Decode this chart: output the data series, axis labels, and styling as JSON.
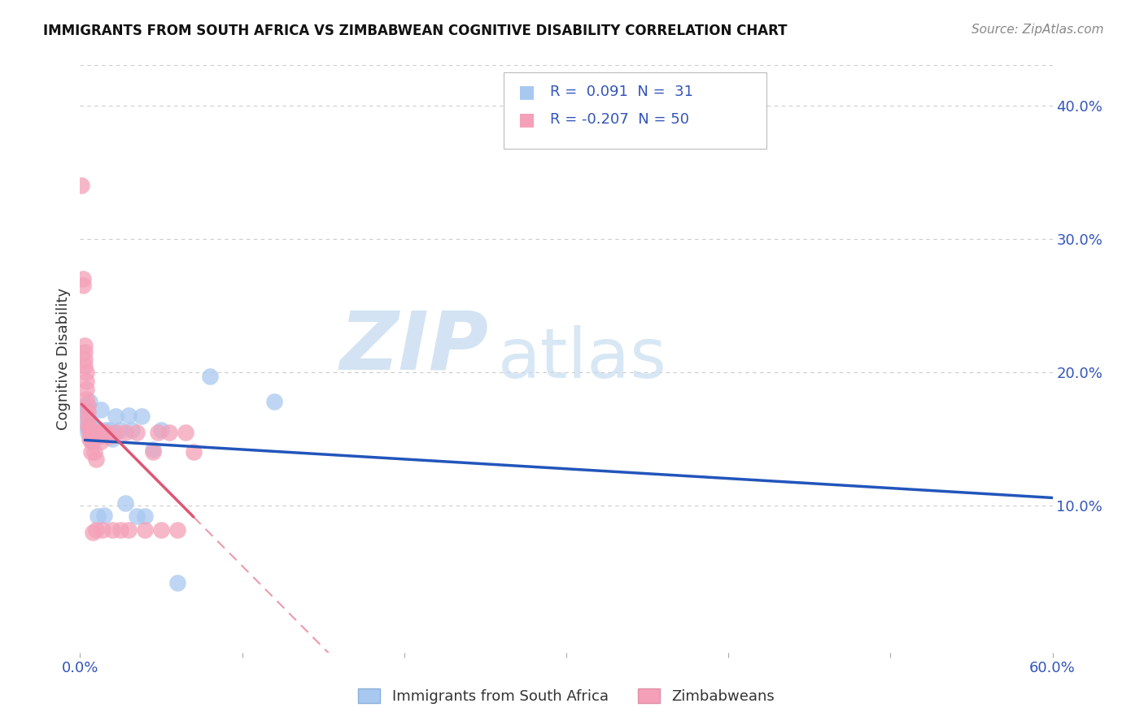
{
  "title": "IMMIGRANTS FROM SOUTH AFRICA VS ZIMBABWEAN COGNITIVE DISABILITY CORRELATION CHART",
  "source": "Source: ZipAtlas.com",
  "ylabel": "Cognitive Disability",
  "xlim": [
    0.0,
    0.6
  ],
  "ylim": [
    -0.01,
    0.43
  ],
  "xtick_positions": [
    0.0,
    0.1,
    0.2,
    0.3,
    0.4,
    0.5,
    0.6
  ],
  "xticklabels": [
    "0.0%",
    "",
    "",
    "",
    "",
    "",
    "60.0%"
  ],
  "yticks_right": [
    0.1,
    0.2,
    0.3,
    0.4
  ],
  "ytick_right_labels": [
    "10.0%",
    "20.0%",
    "30.0%",
    "40.0%"
  ],
  "grid_color": "#cccccc",
  "background_color": "#ffffff",
  "series1_color": "#a8c8f0",
  "series2_color": "#f4a0b8",
  "series1_line_color": "#2255bb",
  "series2_line_color": "#e05575",
  "series1_label": "Immigrants from South Africa",
  "series2_label": "Zimbabweans",
  "series1_R": 0.091,
  "series1_N": 31,
  "series2_R": -0.207,
  "series2_N": 50,
  "watermark_zip": "ZIP",
  "watermark_atlas": "atlas",
  "series1_x": [
    0.003,
    0.004,
    0.004,
    0.005,
    0.005,
    0.006,
    0.007,
    0.007,
    0.008,
    0.009,
    0.01,
    0.011,
    0.012,
    0.013,
    0.015,
    0.016,
    0.018,
    0.02,
    0.022,
    0.025,
    0.028,
    0.03,
    0.032,
    0.035,
    0.038,
    0.04,
    0.045,
    0.05,
    0.06,
    0.08,
    0.12
  ],
  "series1_y": [
    0.175,
    0.16,
    0.17,
    0.155,
    0.165,
    0.178,
    0.155,
    0.162,
    0.148,
    0.152,
    0.158,
    0.092,
    0.157,
    0.172,
    0.093,
    0.157,
    0.157,
    0.15,
    0.167,
    0.157,
    0.102,
    0.168,
    0.157,
    0.092,
    0.167,
    0.092,
    0.142,
    0.157,
    0.042,
    0.197,
    0.178
  ],
  "series2_x": [
    0.001,
    0.002,
    0.002,
    0.003,
    0.003,
    0.003,
    0.003,
    0.004,
    0.004,
    0.004,
    0.004,
    0.005,
    0.005,
    0.005,
    0.005,
    0.006,
    0.006,
    0.006,
    0.007,
    0.007,
    0.007,
    0.008,
    0.008,
    0.008,
    0.009,
    0.009,
    0.009,
    0.01,
    0.01,
    0.011,
    0.012,
    0.013,
    0.014,
    0.015,
    0.016,
    0.018,
    0.02,
    0.022,
    0.025,
    0.028,
    0.03,
    0.035,
    0.04,
    0.045,
    0.048,
    0.05,
    0.055,
    0.06,
    0.065,
    0.07
  ],
  "series2_y": [
    0.34,
    0.27,
    0.265,
    0.22,
    0.215,
    0.21,
    0.205,
    0.2,
    0.193,
    0.187,
    0.18,
    0.175,
    0.17,
    0.165,
    0.16,
    0.158,
    0.155,
    0.15,
    0.155,
    0.148,
    0.14,
    0.155,
    0.152,
    0.08,
    0.155,
    0.155,
    0.14,
    0.135,
    0.082,
    0.155,
    0.152,
    0.148,
    0.082,
    0.155,
    0.155,
    0.152,
    0.082,
    0.155,
    0.082,
    0.155,
    0.082,
    0.155,
    0.082,
    0.14,
    0.155,
    0.082,
    0.155,
    0.082,
    0.155,
    0.14
  ]
}
